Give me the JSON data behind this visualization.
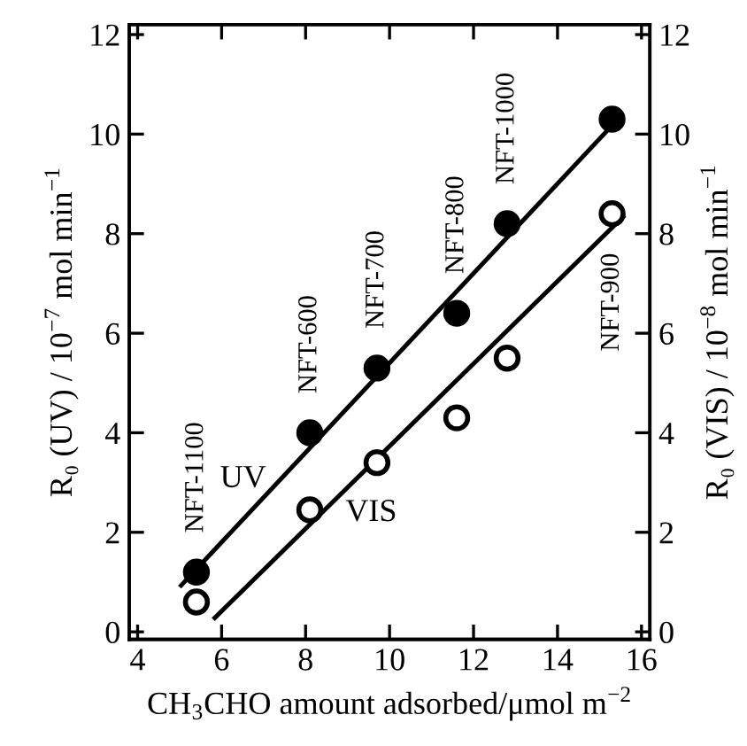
{
  "chart_data": {
    "type": "scatter",
    "xlabel": "CH$_{3}$CHO amount adsorbed/μmol m$^{−2}$",
    "ylabel": "R₀ (UV) / 10$^{−7}$ mol min$^{−1}$",
    "y2label": "R₀ (VIS) / 10$^{−8}$ mol min$^{−1}$",
    "xlim": [
      3.8,
      16.2
    ],
    "xticks": [
      4,
      6,
      8,
      10,
      12,
      14,
      16
    ],
    "ylim": [
      -0.15,
      12.2
    ],
    "yticks": [
      0,
      2,
      4,
      6,
      8,
      10,
      12
    ],
    "y2lim": [
      -0.15,
      12.2
    ],
    "y2ticks": [
      0,
      2,
      4,
      6,
      8,
      10,
      12
    ],
    "grid": false,
    "legend": false,
    "series": [
      {
        "color": "#000000",
        "marker": "circle",
        "x": [
          5.4,
          8.1,
          9.7,
          11.6,
          12.8,
          15.3
        ],
        "values": [
          1.2,
          4.0,
          5.3,
          6.4,
          8.2,
          10.3
        ]
      },
      {
        "color": "#000000",
        "marker": "circle",
        "axis": "y2",
        "x": [
          5.4,
          8.1,
          9.7,
          11.6,
          12.8,
          15.3
        ],
        "values": [
          0.6,
          2.45,
          3.4,
          4.3,
          5.5,
          8.4
        ]
      },
      {
        "type": "line",
        "name": "UV",
        "color": "#000000",
        "x": [
          5.0,
          15.55
        ],
        "values": [
          0.9,
          10.4
        ]
      },
      {
        "type": "line",
        "name": "VIS",
        "color": "#000000",
        "axis": "y2",
        "x": [
          5.8,
          15.6
        ],
        "values": [
          0.25,
          8.37
        ]
      }
    ],
    "annotations": [
      {
        "text": "NFT-1100",
        "x": 5.4,
        "y": 1.2
      },
      {
        "text": "NFT-600",
        "x": 8.1,
        "y": 4.0
      },
      {
        "text": "NFT-700",
        "x": 9.7,
        "y": 5.3
      },
      {
        "text": "NFT-800",
        "x": 11.6,
        "y": 6.4
      },
      {
        "text": "NFT-1000",
        "x": 12.8,
        "y": 8.2
      },
      {
        "text": "NFT-900",
        "x": 15.3,
        "y": 8.4
      }
    ]
  }
}
